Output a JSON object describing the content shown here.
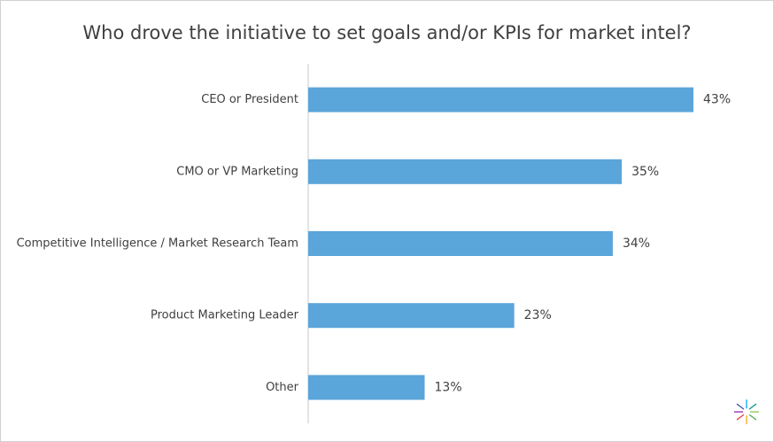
{
  "chart_data": {
    "type": "bar",
    "orientation": "horizontal",
    "title": "Who drove the initiative to set goals and/or KPIs for market intel?",
    "categories": [
      "CEO or President",
      "CMO or VP Marketing",
      "Competitive Intelligence / Market Research Team",
      "Product Marketing Leader",
      "Other"
    ],
    "values": [
      43,
      35,
      34,
      23,
      13
    ],
    "value_labels": [
      "43%",
      "35%",
      "34%",
      "23%",
      "13%"
    ],
    "color": "#5aa5d9"
  }
}
